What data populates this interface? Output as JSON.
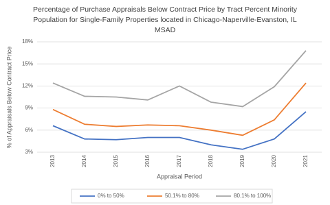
{
  "chart_data": {
    "type": "line",
    "title": "Percentage of Purchase Appraisals Below Contract Price by Tract Percent Minority Population for Single-Family Properties located in Chicago-Naperville-Evanston, IL MSAD",
    "x_label": "Appraisal Period",
    "y_label": "% of Appraisals Below Contract Price",
    "categories": [
      "2013",
      "2014",
      "2015",
      "2016",
      "2017",
      "2018",
      "2019",
      "2020",
      "2021"
    ],
    "series": [
      {
        "name": "0% to 50%",
        "color": "#4472c4",
        "values": [
          6.6,
          4.8,
          4.7,
          5.0,
          5.0,
          4.0,
          3.4,
          4.8,
          8.5
        ]
      },
      {
        "name": "50.1% to 80%",
        "color": "#ed7d31",
        "values": [
          8.8,
          6.8,
          6.5,
          6.7,
          6.6,
          6.0,
          5.3,
          7.4,
          12.4
        ]
      },
      {
        "name": "80.1% to 100%",
        "color": "#a5a5a5",
        "values": [
          12.4,
          10.6,
          10.5,
          10.1,
          12.0,
          9.8,
          9.2,
          11.9,
          16.8
        ]
      }
    ],
    "ylim": [
      3,
      18
    ],
    "yticks": [
      {
        "value": 3,
        "label": "3%"
      },
      {
        "value": 6,
        "label": "6%"
      },
      {
        "value": 9,
        "label": "9%"
      },
      {
        "value": 12,
        "label": "12%"
      },
      {
        "value": 15,
        "label": "15%"
      },
      {
        "value": 18,
        "label": "18%"
      }
    ],
    "grid": true,
    "legend": "bottom"
  }
}
